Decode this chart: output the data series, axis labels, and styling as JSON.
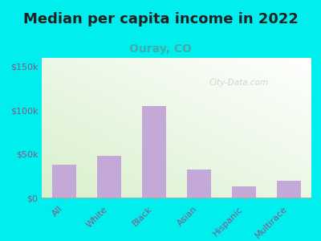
{
  "title": "Median per capita income in 2022",
  "subtitle": "Ouray, CO",
  "categories": [
    "All",
    "White",
    "Black",
    "Asian",
    "Hispanic",
    "Multirace"
  ],
  "values": [
    38000,
    48000,
    105000,
    32000,
    13000,
    19000
  ],
  "bar_color": "#c4a8d8",
  "title_fontsize": 13,
  "subtitle_fontsize": 10,
  "subtitle_color": "#3bbbbbb",
  "title_color": "#222222",
  "tick_label_color": "#885588",
  "ytick_label_color": "#885588",
  "background_outer": "#00eeee",
  "ylim": [
    0,
    160000
  ],
  "yticks": [
    0,
    50000,
    100000,
    150000
  ],
  "ytick_labels": [
    "$0",
    "$50k",
    "$100k",
    "$150k"
  ],
  "watermark": "City-Data.com"
}
